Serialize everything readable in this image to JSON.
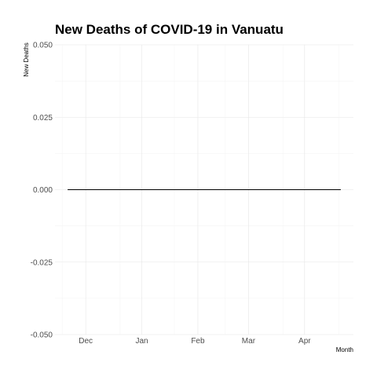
{
  "chart_data": {
    "type": "line",
    "title": "New Deaths of COVID-19 in Vanuatu",
    "xlabel": "Month",
    "ylabel": "New Deaths",
    "x_ticks": [
      "Dec",
      "Jan",
      "Feb",
      "Mar",
      "Apr"
    ],
    "y_ticks": [
      "-0.050",
      "-0.025",
      "0.000",
      "0.025",
      "0.050"
    ],
    "ylim": [
      -0.05,
      0.05
    ],
    "grid": true,
    "legend": "none",
    "series": [
      {
        "values": [
          {
            "x": "2020-11-21",
            "y": 0
          },
          {
            "x": "2021-04-21",
            "y": 0
          }
        ]
      }
    ],
    "line_color": "#000000"
  }
}
